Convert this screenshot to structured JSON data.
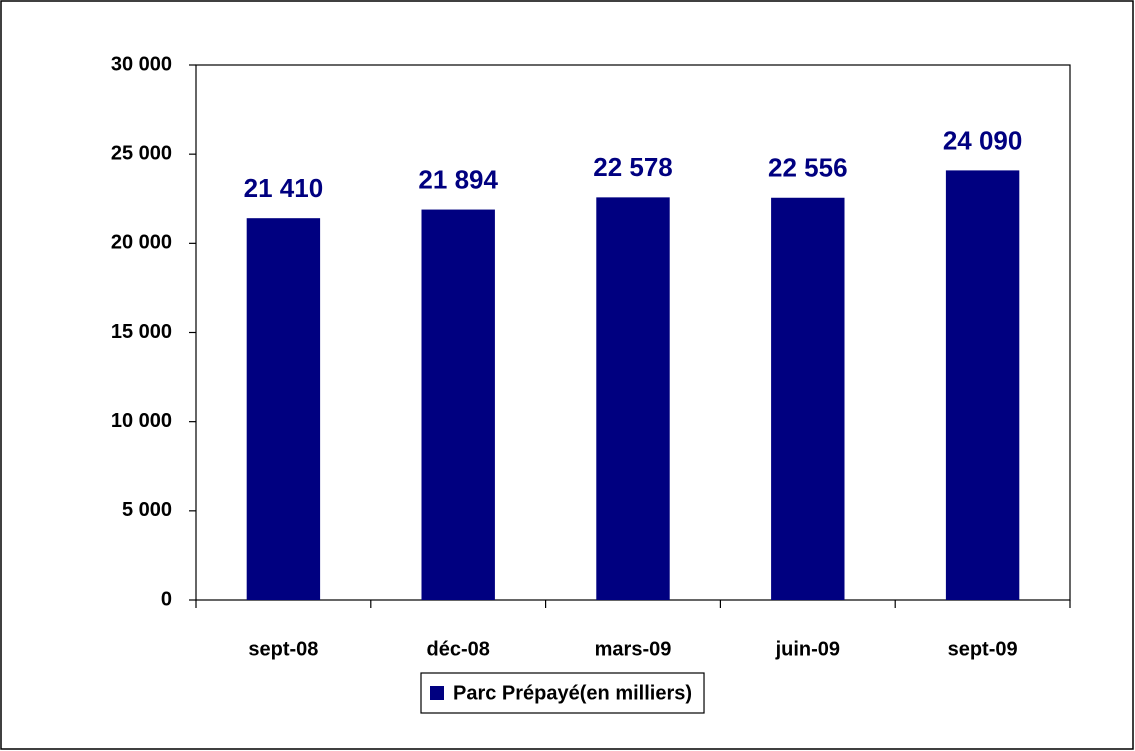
{
  "chart_data": {
    "type": "bar",
    "categories": [
      "sept-08",
      "déc-08",
      "mars-09",
      "juin-09",
      "sept-09"
    ],
    "series": [
      {
        "name": "Parc Prépayé(en milliers)",
        "color": "#000080",
        "values": [
          21410,
          21894,
          22578,
          22556,
          24090
        ],
        "value_labels": [
          "21 410",
          "21 894",
          "22 578",
          "22 556",
          "24 090"
        ]
      }
    ],
    "ylim": [
      0,
      30000
    ],
    "yticks": [
      {
        "value": 0,
        "label": "0"
      },
      {
        "value": 5000,
        "label": "5 000"
      },
      {
        "value": 10000,
        "label": "10 000"
      },
      {
        "value": 15000,
        "label": "15 000"
      },
      {
        "value": 20000,
        "label": "20 000"
      },
      {
        "value": 25000,
        "label": "25 000"
      },
      {
        "value": 30000,
        "label": "30 000"
      }
    ],
    "grid": false,
    "legend": "bottom"
  }
}
